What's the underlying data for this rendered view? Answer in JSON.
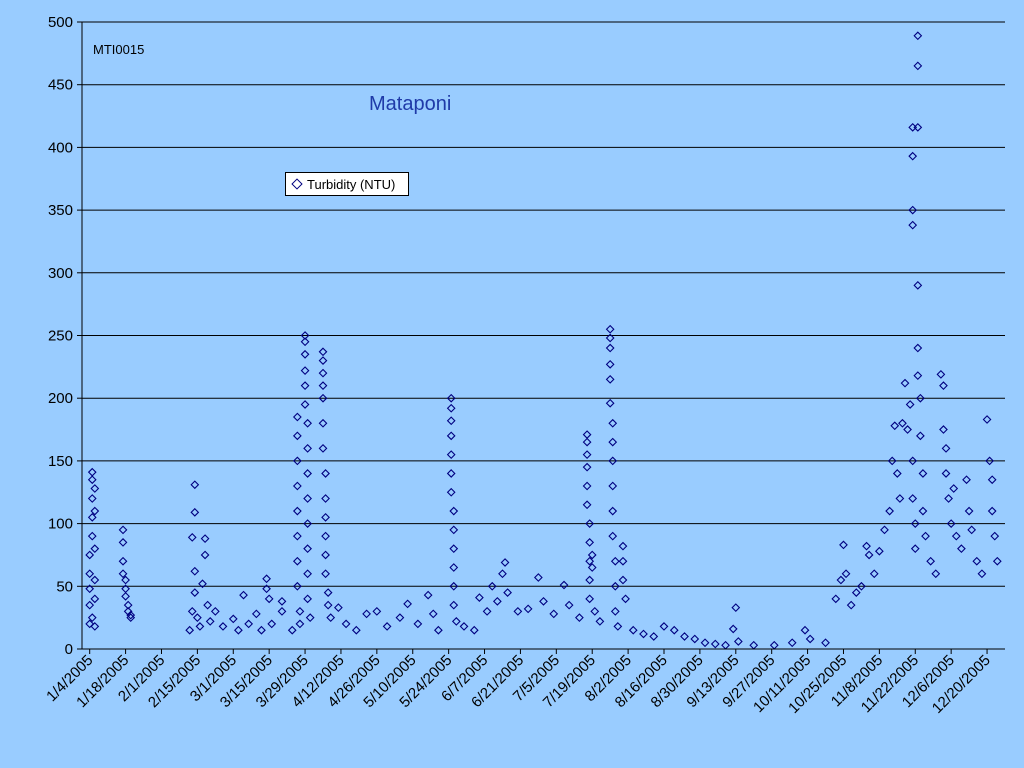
{
  "chart_data": {
    "type": "scatter",
    "title": "Mataponi",
    "station_label": "MTI0015",
    "xlabel": "",
    "ylabel": "",
    "ylim": [
      0,
      500
    ],
    "yticks": [
      0,
      50,
      100,
      150,
      200,
      250,
      300,
      350,
      400,
      450,
      500
    ],
    "xlim": [
      "2005-01-01",
      "2005-12-27"
    ],
    "xticks": [
      "1/4/2005",
      "1/18/2005",
      "2/1/2005",
      "2/15/2005",
      "3/1/2005",
      "3/15/2005",
      "3/29/2005",
      "4/12/2005",
      "4/26/2005",
      "5/10/2005",
      "5/24/2005",
      "6/7/2005",
      "6/21/2005",
      "7/5/2005",
      "7/19/2005",
      "8/2/2005",
      "8/16/2005",
      "8/30/2005",
      "9/13/2005",
      "9/27/2005",
      "10/11/2005",
      "10/25/2005",
      "11/8/2005",
      "11/22/2005",
      "12/6/2005",
      "12/20/2005"
    ],
    "grid": true,
    "legend_position": "top-left",
    "marker": "diamond",
    "marker_color": "#000080",
    "background_color": "#99ccff",
    "title_color": "#1f3aa8",
    "series": [
      {
        "name": "Turbidity (NTU)",
        "points": [
          [
            "1/4/2005",
            20
          ],
          [
            "1/4/2005",
            35
          ],
          [
            "1/4/2005",
            48
          ],
          [
            "1/4/2005",
            60
          ],
          [
            "1/4/2005",
            75
          ],
          [
            "1/5/2005",
            90
          ],
          [
            "1/5/2005",
            105
          ],
          [
            "1/5/2005",
            120
          ],
          [
            "1/5/2005",
            135
          ],
          [
            "1/5/2005",
            141
          ],
          [
            "1/5/2005",
            25
          ],
          [
            "1/6/2005",
            55
          ],
          [
            "1/6/2005",
            80
          ],
          [
            "1/6/2005",
            110
          ],
          [
            "1/6/2005",
            128
          ],
          [
            "1/6/2005",
            40
          ],
          [
            "1/6/2005",
            18
          ],
          [
            "1/17/2005",
            95
          ],
          [
            "1/17/2005",
            85
          ],
          [
            "1/17/2005",
            70
          ],
          [
            "1/17/2005",
            60
          ],
          [
            "1/18/2005",
            55
          ],
          [
            "1/18/2005",
            48
          ],
          [
            "1/18/2005",
            42
          ],
          [
            "1/19/2005",
            35
          ],
          [
            "1/19/2005",
            30
          ],
          [
            "1/20/2005",
            27
          ],
          [
            "1/20/2005",
            25
          ],
          [
            "2/12/2005",
            15
          ],
          [
            "2/13/2005",
            30
          ],
          [
            "2/13/2005",
            89
          ],
          [
            "2/14/2005",
            109
          ],
          [
            "2/14/2005",
            131
          ],
          [
            "2/14/2005",
            62
          ],
          [
            "2/14/2005",
            45
          ],
          [
            "2/15/2005",
            25
          ],
          [
            "2/16/2005",
            18
          ],
          [
            "2/17/2005",
            52
          ],
          [
            "2/18/2005",
            88
          ],
          [
            "2/18/2005",
            75
          ],
          [
            "2/19/2005",
            35
          ],
          [
            "2/20/2005",
            22
          ],
          [
            "2/22/2005",
            30
          ],
          [
            "2/25/2005",
            18
          ],
          [
            "3/1/2005",
            24
          ],
          [
            "3/3/2005",
            15
          ],
          [
            "3/5/2005",
            43
          ],
          [
            "3/7/2005",
            20
          ],
          [
            "3/10/2005",
            28
          ],
          [
            "3/12/2005",
            15
          ],
          [
            "3/14/2005",
            56
          ],
          [
            "3/14/2005",
            48
          ],
          [
            "3/15/2005",
            40
          ],
          [
            "3/16/2005",
            20
          ],
          [
            "3/20/2005",
            38
          ],
          [
            "3/20/2005",
            30
          ],
          [
            "3/24/2005",
            15
          ],
          [
            "3/26/2005",
            185
          ],
          [
            "3/26/2005",
            170
          ],
          [
            "3/26/2005",
            150
          ],
          [
            "3/26/2005",
            130
          ],
          [
            "3/26/2005",
            110
          ],
          [
            "3/26/2005",
            90
          ],
          [
            "3/26/2005",
            70
          ],
          [
            "3/26/2005",
            50
          ],
          [
            "3/27/2005",
            30
          ],
          [
            "3/27/2005",
            20
          ],
          [
            "3/29/2005",
            250
          ],
          [
            "3/29/2005",
            245
          ],
          [
            "3/29/2005",
            235
          ],
          [
            "3/29/2005",
            222
          ],
          [
            "3/29/2005",
            210
          ],
          [
            "3/29/2005",
            195
          ],
          [
            "3/30/2005",
            180
          ],
          [
            "3/30/2005",
            160
          ],
          [
            "3/30/2005",
            140
          ],
          [
            "3/30/2005",
            120
          ],
          [
            "3/30/2005",
            100
          ],
          [
            "3/30/2005",
            80
          ],
          [
            "3/30/2005",
            60
          ],
          [
            "3/30/2005",
            40
          ],
          [
            "3/31/2005",
            25
          ],
          [
            "4/5/2005",
            237
          ],
          [
            "4/5/2005",
            230
          ],
          [
            "4/5/2005",
            220
          ],
          [
            "4/5/2005",
            210
          ],
          [
            "4/5/2005",
            200
          ],
          [
            "4/5/2005",
            180
          ],
          [
            "4/5/2005",
            160
          ],
          [
            "4/6/2005",
            140
          ],
          [
            "4/6/2005",
            120
          ],
          [
            "4/6/2005",
            105
          ],
          [
            "4/6/2005",
            90
          ],
          [
            "4/6/2005",
            75
          ],
          [
            "4/6/2005",
            60
          ],
          [
            "4/7/2005",
            45
          ],
          [
            "4/7/2005",
            35
          ],
          [
            "4/8/2005",
            25
          ],
          [
            "4/11/2005",
            33
          ],
          [
            "4/14/2005",
            20
          ],
          [
            "4/18/2005",
            15
          ],
          [
            "4/22/2005",
            28
          ],
          [
            "4/26/2005",
            30
          ],
          [
            "4/30/2005",
            18
          ],
          [
            "5/5/2005",
            25
          ],
          [
            "5/8/2005",
            36
          ],
          [
            "5/12/2005",
            20
          ],
          [
            "5/16/2005",
            43
          ],
          [
            "5/18/2005",
            28
          ],
          [
            "5/20/2005",
            15
          ],
          [
            "5/25/2005",
            200
          ],
          [
            "5/25/2005",
            192
          ],
          [
            "5/25/2005",
            182
          ],
          [
            "5/25/2005",
            170
          ],
          [
            "5/25/2005",
            155
          ],
          [
            "5/25/2005",
            140
          ],
          [
            "5/25/2005",
            125
          ],
          [
            "5/26/2005",
            110
          ],
          [
            "5/26/2005",
            95
          ],
          [
            "5/26/2005",
            80
          ],
          [
            "5/26/2005",
            65
          ],
          [
            "5/26/2005",
            50
          ],
          [
            "5/26/2005",
            35
          ],
          [
            "5/27/2005",
            22
          ],
          [
            "5/30/2005",
            18
          ],
          [
            "6/3/2005",
            15
          ],
          [
            "6/5/2005",
            41
          ],
          [
            "6/8/2005",
            30
          ],
          [
            "6/10/2005",
            50
          ],
          [
            "6/12/2005",
            38
          ],
          [
            "6/14/2005",
            60
          ],
          [
            "6/15/2005",
            69
          ],
          [
            "6/16/2005",
            45
          ],
          [
            "6/20/2005",
            30
          ],
          [
            "6/24/2005",
            32
          ],
          [
            "6/28/2005",
            57
          ],
          [
            "6/30/2005",
            38
          ],
          [
            "7/4/2005",
            28
          ],
          [
            "7/8/2005",
            51
          ],
          [
            "7/10/2005",
            35
          ],
          [
            "7/14/2005",
            25
          ],
          [
            "7/17/2005",
            171
          ],
          [
            "7/17/2005",
            165
          ],
          [
            "7/17/2005",
            155
          ],
          [
            "7/17/2005",
            145
          ],
          [
            "7/17/2005",
            130
          ],
          [
            "7/17/2005",
            115
          ],
          [
            "7/18/2005",
            100
          ],
          [
            "7/18/2005",
            85
          ],
          [
            "7/18/2005",
            70
          ],
          [
            "7/18/2005",
            55
          ],
          [
            "7/18/2005",
            40
          ],
          [
            "7/19/2005",
            75
          ],
          [
            "7/19/2005",
            65
          ],
          [
            "7/20/2005",
            30
          ],
          [
            "7/22/2005",
            22
          ],
          [
            "7/26/2005",
            255
          ],
          [
            "7/26/2005",
            248
          ],
          [
            "7/26/2005",
            240
          ],
          [
            "7/26/2005",
            227
          ],
          [
            "7/26/2005",
            215
          ],
          [
            "7/26/2005",
            196
          ],
          [
            "7/27/2005",
            180
          ],
          [
            "7/27/2005",
            165
          ],
          [
            "7/27/2005",
            150
          ],
          [
            "7/27/2005",
            130
          ],
          [
            "7/27/2005",
            110
          ],
          [
            "7/27/2005",
            90
          ],
          [
            "7/28/2005",
            70
          ],
          [
            "7/28/2005",
            50
          ],
          [
            "7/28/2005",
            30
          ],
          [
            "7/29/2005",
            18
          ],
          [
            "7/31/2005",
            82
          ],
          [
            "7/31/2005",
            70
          ],
          [
            "7/31/2005",
            55
          ],
          [
            "8/1/2005",
            40
          ],
          [
            "8/4/2005",
            15
          ],
          [
            "8/8/2005",
            12
          ],
          [
            "8/12/2005",
            10
          ],
          [
            "8/16/2005",
            18
          ],
          [
            "8/20/2005",
            15
          ],
          [
            "8/24/2005",
            10
          ],
          [
            "8/28/2005",
            8
          ],
          [
            "9/1/2005",
            5
          ],
          [
            "9/5/2005",
            4
          ],
          [
            "9/9/2005",
            3
          ],
          [
            "9/12/2005",
            16
          ],
          [
            "9/13/2005",
            33
          ],
          [
            "9/14/2005",
            6
          ],
          [
            "9/20/2005",
            3
          ],
          [
            "9/28/2005",
            3
          ],
          [
            "10/5/2005",
            5
          ],
          [
            "10/10/2005",
            15
          ],
          [
            "10/12/2005",
            8
          ],
          [
            "10/18/2005",
            5
          ],
          [
            "10/22/2005",
            40
          ],
          [
            "10/24/2005",
            55
          ],
          [
            "10/25/2005",
            83
          ],
          [
            "10/26/2005",
            60
          ],
          [
            "10/28/2005",
            35
          ],
          [
            "10/30/2005",
            45
          ],
          [
            "11/1/2005",
            50
          ],
          [
            "11/3/2005",
            82
          ],
          [
            "11/4/2005",
            75
          ],
          [
            "11/6/2005",
            60
          ],
          [
            "11/8/2005",
            78
          ],
          [
            "11/10/2005",
            95
          ],
          [
            "11/12/2005",
            110
          ],
          [
            "11/13/2005",
            150
          ],
          [
            "11/14/2005",
            178
          ],
          [
            "11/15/2005",
            140
          ],
          [
            "11/16/2005",
            120
          ],
          [
            "11/17/2005",
            180
          ],
          [
            "11/18/2005",
            212
          ],
          [
            "11/19/2005",
            175
          ],
          [
            "11/20/2005",
            195
          ],
          [
            "11/21/2005",
            416
          ],
          [
            "11/21/2005",
            393
          ],
          [
            "11/21/2005",
            350
          ],
          [
            "11/21/2005",
            338
          ],
          [
            "11/21/2005",
            150
          ],
          [
            "11/21/2005",
            120
          ],
          [
            "11/22/2005",
            100
          ],
          [
            "11/22/2005",
            80
          ],
          [
            "11/23/2005",
            489
          ],
          [
            "11/23/2005",
            465
          ],
          [
            "11/23/2005",
            416
          ],
          [
            "11/23/2005",
            290
          ],
          [
            "11/23/2005",
            240
          ],
          [
            "11/23/2005",
            218
          ],
          [
            "11/24/2005",
            200
          ],
          [
            "11/24/2005",
            170
          ],
          [
            "11/25/2005",
            140
          ],
          [
            "11/25/2005",
            110
          ],
          [
            "11/26/2005",
            90
          ],
          [
            "11/28/2005",
            70
          ],
          [
            "11/30/2005",
            60
          ],
          [
            "12/2/2005",
            219
          ],
          [
            "12/3/2005",
            210
          ],
          [
            "12/3/2005",
            175
          ],
          [
            "12/4/2005",
            160
          ],
          [
            "12/4/2005",
            140
          ],
          [
            "12/5/2005",
            120
          ],
          [
            "12/6/2005",
            100
          ],
          [
            "12/7/2005",
            128
          ],
          [
            "12/8/2005",
            90
          ],
          [
            "12/10/2005",
            80
          ],
          [
            "12/12/2005",
            135
          ],
          [
            "12/13/2005",
            110
          ],
          [
            "12/14/2005",
            95
          ],
          [
            "12/16/2005",
            70
          ],
          [
            "12/18/2005",
            60
          ],
          [
            "12/20/2005",
            183
          ],
          [
            "12/21/2005",
            150
          ],
          [
            "12/22/2005",
            135
          ],
          [
            "12/22/2005",
            110
          ],
          [
            "12/23/2005",
            90
          ],
          [
            "12/24/2005",
            70
          ]
        ]
      }
    ]
  }
}
